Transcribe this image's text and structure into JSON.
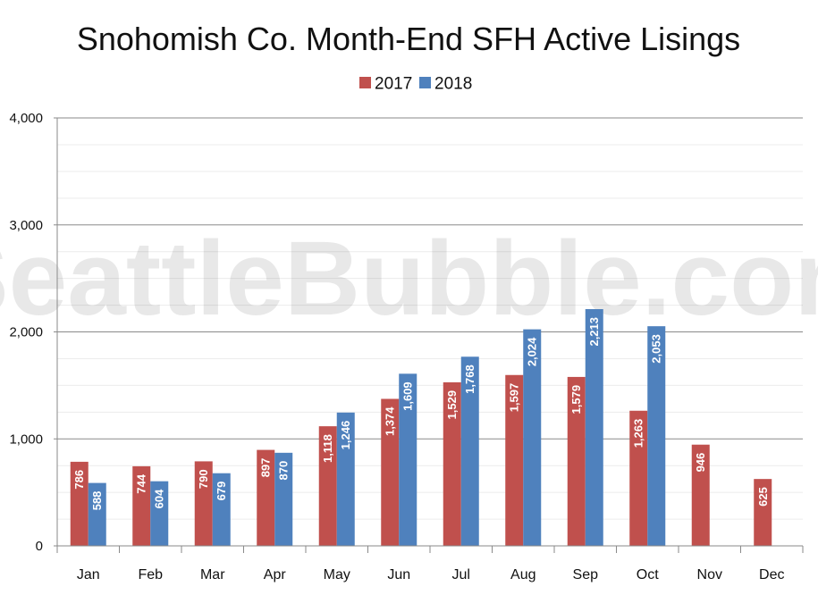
{
  "chart_data": {
    "type": "bar",
    "title": "Snohomish Co. Month-End SFH Active Lisings",
    "watermark": "SeattleBubble.com",
    "categories": [
      "Jan",
      "Feb",
      "Mar",
      "Apr",
      "May",
      "Jun",
      "Jul",
      "Aug",
      "Sep",
      "Oct",
      "Nov",
      "Dec"
    ],
    "series": [
      {
        "name": "2017",
        "color": "#c0504d",
        "values": [
          786,
          744,
          790,
          897,
          1118,
          1374,
          1529,
          1597,
          1579,
          1263,
          946,
          625
        ]
      },
      {
        "name": "2018",
        "color": "#4f81bd",
        "values": [
          588,
          604,
          679,
          870,
          1246,
          1609,
          1768,
          2024,
          2213,
          2053,
          null,
          null
        ]
      }
    ],
    "ylim": [
      0,
      4000
    ],
    "yticks": [
      0,
      1000,
      2000,
      3000,
      4000
    ],
    "ytick_labels": [
      "0",
      "1,000",
      "2,000",
      "3,000",
      "4,000"
    ],
    "grid": true,
    "legend_position": "top-center",
    "xlabel": "",
    "ylabel": ""
  }
}
